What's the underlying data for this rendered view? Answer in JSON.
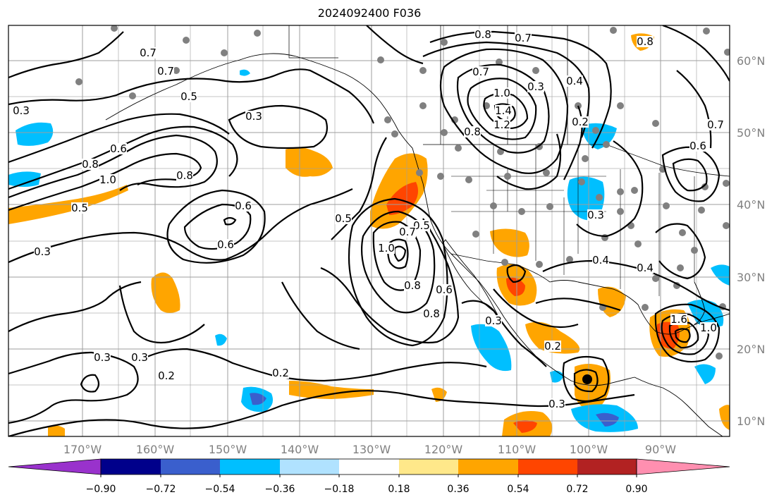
{
  "title": "2024092400 F036",
  "axes": {
    "lon_labels": [
      "170°W",
      "160°W",
      "150°W",
      "140°W",
      "130°W",
      "120°W",
      "110°W",
      "100°W",
      "90°W"
    ],
    "lat_labels": [
      "60°N",
      "50°N",
      "40°N",
      "30°N",
      "20°N",
      "10°N"
    ]
  },
  "colorbar": {
    "tick_labels": [
      "−0.90",
      "−0.72",
      "−0.54",
      "−0.36",
      "−0.18",
      "0.18",
      "0.36",
      "0.54",
      "0.72",
      "0.90"
    ],
    "colors": [
      "#9932cc",
      "#00008b",
      "#3a5fcd",
      "#00bfff",
      "#b0e2ff",
      "#ffffff",
      "#ffe88a",
      "#ffa500",
      "#ff4500",
      "#b22222",
      "#ff8fb0"
    ]
  },
  "contour_labels": [
    {
      "text": "0.8"
    },
    {
      "text": "0.7"
    },
    {
      "text": "0.7"
    },
    {
      "text": "0.7"
    },
    {
      "text": "0.5"
    },
    {
      "text": "0.3"
    },
    {
      "text": "0.3"
    },
    {
      "text": "0.7"
    },
    {
      "text": "0.8"
    },
    {
      "text": "1.0"
    },
    {
      "text": "1.4"
    },
    {
      "text": "1.2"
    },
    {
      "text": "0.3"
    },
    {
      "text": "0.4"
    },
    {
      "text": "0.2"
    },
    {
      "text": "0.8"
    },
    {
      "text": "0.6"
    },
    {
      "text": "0.8"
    },
    {
      "text": "0.7"
    },
    {
      "text": "0.8"
    },
    {
      "text": "1.0"
    },
    {
      "text": "0.5"
    },
    {
      "text": "0.6"
    },
    {
      "text": "0.6"
    },
    {
      "text": "0.5"
    },
    {
      "text": "0.3"
    },
    {
      "text": "0.5"
    },
    {
      "text": "0.7"
    },
    {
      "text": "1.0"
    },
    {
      "text": "0.8"
    },
    {
      "text": "0.6"
    },
    {
      "text": "0.8"
    },
    {
      "text": "0.3"
    },
    {
      "text": "0.4"
    },
    {
      "text": "0.3"
    },
    {
      "text": "0.4"
    },
    {
      "text": "0.3"
    },
    {
      "text": "0.3"
    },
    {
      "text": "0.2"
    },
    {
      "text": "0.2"
    },
    {
      "text": "0.3"
    },
    {
      "text": "0.2"
    },
    {
      "text": "0.6"
    },
    {
      "text": "1.6"
    },
    {
      "text": "1.0"
    }
  ]
}
